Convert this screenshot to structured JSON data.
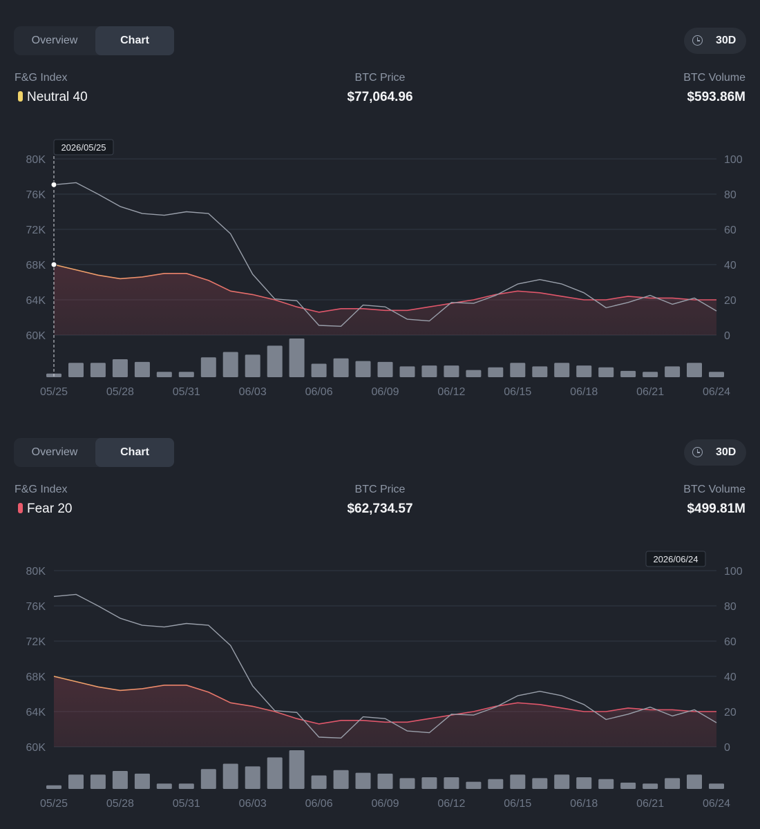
{
  "panels": [
    {
      "tabs": [
        {
          "label": "Overview",
          "active": false
        },
        {
          "label": "Chart",
          "active": true
        }
      ],
      "range": {
        "icon": "clock-icon",
        "label": "30D"
      },
      "stats": {
        "fg_label": "F&G Index",
        "fg_value": "Neutral 40",
        "fg_color": "#f0d36a",
        "price_label": "BTC Price",
        "price_value": "$77,064.96",
        "volume_label": "BTC Volume",
        "volume_value": "$593.86M"
      },
      "tooltip": {
        "date": "2026/05/25",
        "index": 0,
        "crosshair": true
      }
    },
    {
      "tabs": [
        {
          "label": "Overview",
          "active": false
        },
        {
          "label": "Chart",
          "active": true
        }
      ],
      "range": {
        "icon": "clock-icon",
        "label": "30D"
      },
      "stats": {
        "fg_label": "F&G Index",
        "fg_value": "Fear 20",
        "fg_color": "#ea5b6c",
        "price_label": "BTC Price",
        "price_value": "$62,734.57",
        "volume_label": "BTC Volume",
        "volume_value": "$499.81M"
      },
      "tooltip": {
        "date": "2026/06/24",
        "index": 30,
        "crosshair": false
      }
    }
  ],
  "colors": {
    "price_line": "#9aa0ab",
    "fg_neutral": "#f2a96b",
    "fg_fear": "#e0566a",
    "volume_bar": "#7b828e",
    "grid": "#323844"
  },
  "chart_data": {
    "type": "line",
    "x": [
      "05/25",
      "05/26",
      "05/27",
      "05/28",
      "05/29",
      "05/30",
      "05/31",
      "06/01",
      "06/02",
      "06/03",
      "06/04",
      "06/05",
      "06/06",
      "06/07",
      "06/08",
      "06/09",
      "06/10",
      "06/11",
      "06/12",
      "06/13",
      "06/14",
      "06/15",
      "06/16",
      "06/17",
      "06/18",
      "06/19",
      "06/20",
      "06/21",
      "06/22",
      "06/23",
      "06/24"
    ],
    "x_ticks": [
      "05/25",
      "05/28",
      "05/31",
      "06/03",
      "06/06",
      "06/09",
      "06/12",
      "06/15",
      "06/18",
      "06/21",
      "06/24"
    ],
    "y_left": {
      "ticks": [
        "60K",
        "64K",
        "68K",
        "72K",
        "76K",
        "80K"
      ],
      "min": 60000,
      "max": 80000
    },
    "y_right": {
      "ticks": [
        "0",
        "20",
        "40",
        "60",
        "80",
        "100"
      ],
      "min": 0,
      "max": 100
    },
    "grid": true,
    "series": [
      {
        "axis": "left",
        "values": [
          77065,
          77300,
          76000,
          74600,
          73800,
          73600,
          74000,
          73800,
          71500,
          66900,
          64100,
          63900,
          61100,
          61000,
          63400,
          63200,
          61800,
          61600,
          63700,
          63600,
          64500,
          65800,
          66300,
          65800,
          64800,
          63100,
          63700,
          64500,
          63500,
          64200,
          62735
        ]
      },
      {
        "axis": "right",
        "values": [
          40,
          37,
          34,
          32,
          33,
          35,
          35,
          31,
          25,
          23,
          20,
          16,
          13,
          15,
          15,
          14,
          14,
          16,
          18,
          20,
          23,
          25,
          24,
          22,
          20,
          20,
          22,
          21,
          21,
          20,
          20
        ]
      },
      {
        "axis": "volume",
        "values": [
          4,
          16,
          16,
          20,
          17,
          6,
          6,
          22,
          28,
          25,
          35,
          43,
          15,
          21,
          18,
          17,
          12,
          13,
          13,
          8,
          11,
          16,
          12,
          16,
          13,
          11,
          7,
          6,
          12,
          16,
          6
        ]
      }
    ]
  }
}
